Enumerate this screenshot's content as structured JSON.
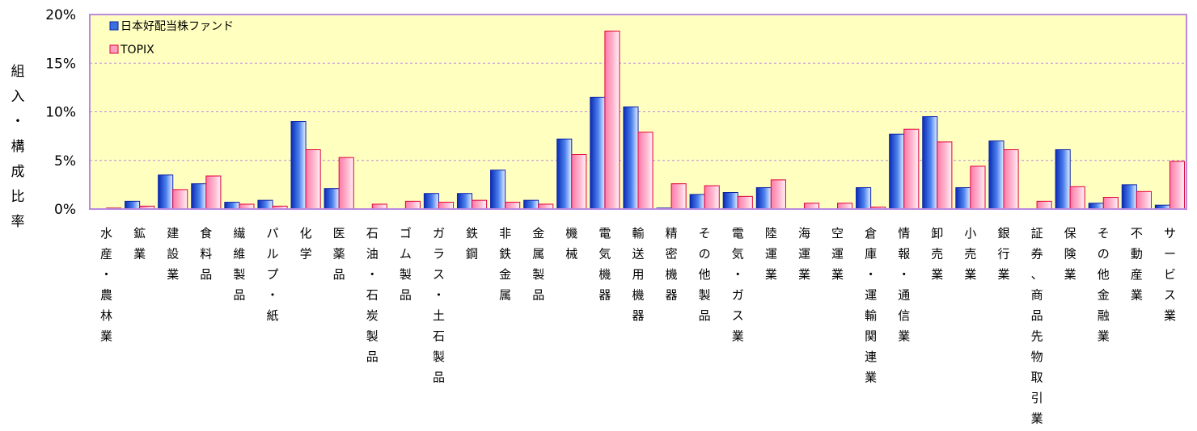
{
  "chart_data": {
    "type": "bar",
    "ylabel": "組入・構成比率",
    "ylim": [
      0,
      20
    ],
    "yticks": [
      "0%",
      "5%",
      "10%",
      "15%",
      "20%"
    ],
    "grid": true,
    "legend_position": "top-left",
    "colors": {
      "plot_background": "#ffffc0",
      "plot_border": "#b98ae0",
      "gridline": "#b98ae0",
      "series1_fill": "#3a6fe0",
      "series1_stroke": "#0b22a8",
      "series2_fill": "#ff9fbf",
      "series2_stroke": "#e0003a"
    },
    "categories": [
      "水産・農林業",
      "鉱業",
      "建設業",
      "食料品",
      "繊維製品",
      "パルプ・紙",
      "化学",
      "医薬品",
      "石油・石炭製品",
      "ゴム製品",
      "ガラス・土石製品",
      "鉄鋼",
      "非鉄金属",
      "金属製品",
      "機械",
      "電気機器",
      "輸送用機器",
      "精密機器",
      "その他製品",
      "電気・ガス業",
      "陸運業",
      "海運業",
      "空運業",
      "倉庫・運輸関連業",
      "情報・通信業",
      "卸売業",
      "小売業",
      "銀行業",
      "証券、商品先物取引業",
      "保険業",
      "その他金融業",
      "不動産業",
      "サービス業"
    ],
    "series": [
      {
        "name": "日本好配当株ファンド",
        "values": [
          0,
          0.8,
          3.5,
          2.6,
          0.7,
          0.9,
          9.0,
          2.1,
          0,
          0,
          1.6,
          1.6,
          4.0,
          0.9,
          7.2,
          11.5,
          10.5,
          0.1,
          1.5,
          1.7,
          2.2,
          0,
          0,
          2.2,
          7.7,
          9.5,
          2.2,
          7.0,
          0,
          6.1,
          0.6,
          2.5,
          0.4
        ]
      },
      {
        "name": "TOPIX",
        "values": [
          0.1,
          0.3,
          2.0,
          3.4,
          0.5,
          0.3,
          6.1,
          5.3,
          0.5,
          0.8,
          0.7,
          0.9,
          0.7,
          0.5,
          5.6,
          18.3,
          7.9,
          2.6,
          2.4,
          1.3,
          3.0,
          0.6,
          0.6,
          0.2,
          8.2,
          6.9,
          4.4,
          6.1,
          0.8,
          2.3,
          1.2,
          1.8,
          4.9
        ]
      }
    ]
  }
}
